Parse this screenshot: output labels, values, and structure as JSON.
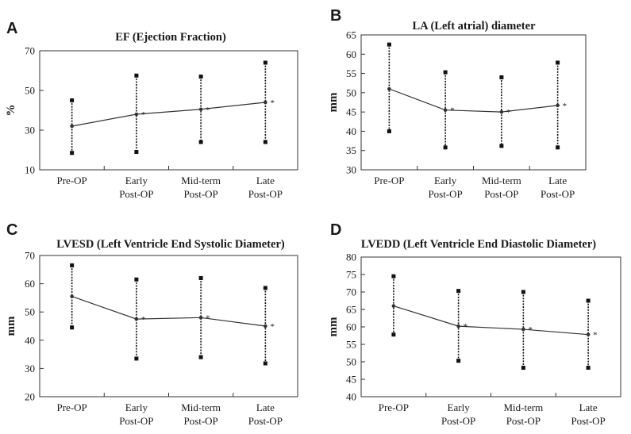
{
  "chart_data": [
    {
      "type": "line",
      "panel": "A",
      "title": "EF (Ejection Fraction)",
      "ylabel": "%",
      "xlabel": "",
      "categories": [
        "Pre-OP",
        "Early\nPost-OP",
        "Mid-term\nPost-OP",
        "Late\nPost-OP"
      ],
      "ylim": [
        10,
        70
      ],
      "yticks": [
        10,
        30,
        50,
        70
      ],
      "series": [
        {
          "values": [
            32,
            38,
            40.5,
            44
          ],
          "low": [
            18.5,
            19,
            24,
            24
          ],
          "high": [
            45,
            57.5,
            57,
            64
          ]
        }
      ],
      "marker_label": "*"
    },
    {
      "type": "line",
      "panel": "B",
      "title": "LA (Left atrial) diameter",
      "ylabel": "mm",
      "xlabel": "",
      "categories": [
        "Pre-OP",
        "Early\nPost-OP",
        "Mid-term\nPost-OP",
        "Late\nPost-OP"
      ],
      "ylim": [
        30,
        65
      ],
      "yticks": [
        30,
        35,
        40,
        45,
        50,
        55,
        60,
        65
      ],
      "series": [
        {
          "values": [
            51,
            45.5,
            45,
            46.7
          ],
          "low": [
            40,
            35.8,
            36.2,
            35.8
          ],
          "high": [
            62.5,
            55.3,
            54,
            57.8
          ]
        }
      ],
      "marker_label": "*"
    },
    {
      "type": "line",
      "panel": "C",
      "title": "LVESD (Left Ventricle End Systolic Diameter)",
      "ylabel": "mm",
      "xlabel": "",
      "categories": [
        "Pre-OP",
        "Early\nPost-OP",
        "Mid-term\nPost-OP",
        "Late\nPost-OP"
      ],
      "ylim": [
        20,
        70
      ],
      "yticks": [
        20,
        30,
        40,
        50,
        60,
        70
      ],
      "series": [
        {
          "values": [
            55.5,
            47.5,
            48,
            45
          ],
          "low": [
            44.5,
            33.5,
            34,
            31.8
          ],
          "high": [
            66.5,
            61.5,
            62,
            58.5
          ]
        }
      ],
      "marker_label": "*"
    },
    {
      "type": "line",
      "panel": "D",
      "title": "LVEDD (Left Ventricle End Diastolic Diameter)",
      "ylabel": "mm",
      "xlabel": "",
      "categories": [
        "Pre-OP",
        "Early\nPost-OP",
        "Mid-term\nPost-OP",
        "Late\nPost-OP"
      ],
      "ylim": [
        40,
        80
      ],
      "yticks": [
        40,
        45,
        50,
        55,
        60,
        65,
        70,
        75,
        80
      ],
      "series": [
        {
          "values": [
            66,
            60.2,
            59.3,
            57.8
          ],
          "low": [
            57.8,
            50.3,
            48.3,
            48.3
          ],
          "high": [
            74.5,
            70.3,
            70,
            67.5
          ]
        }
      ],
      "marker_label": "*"
    }
  ]
}
